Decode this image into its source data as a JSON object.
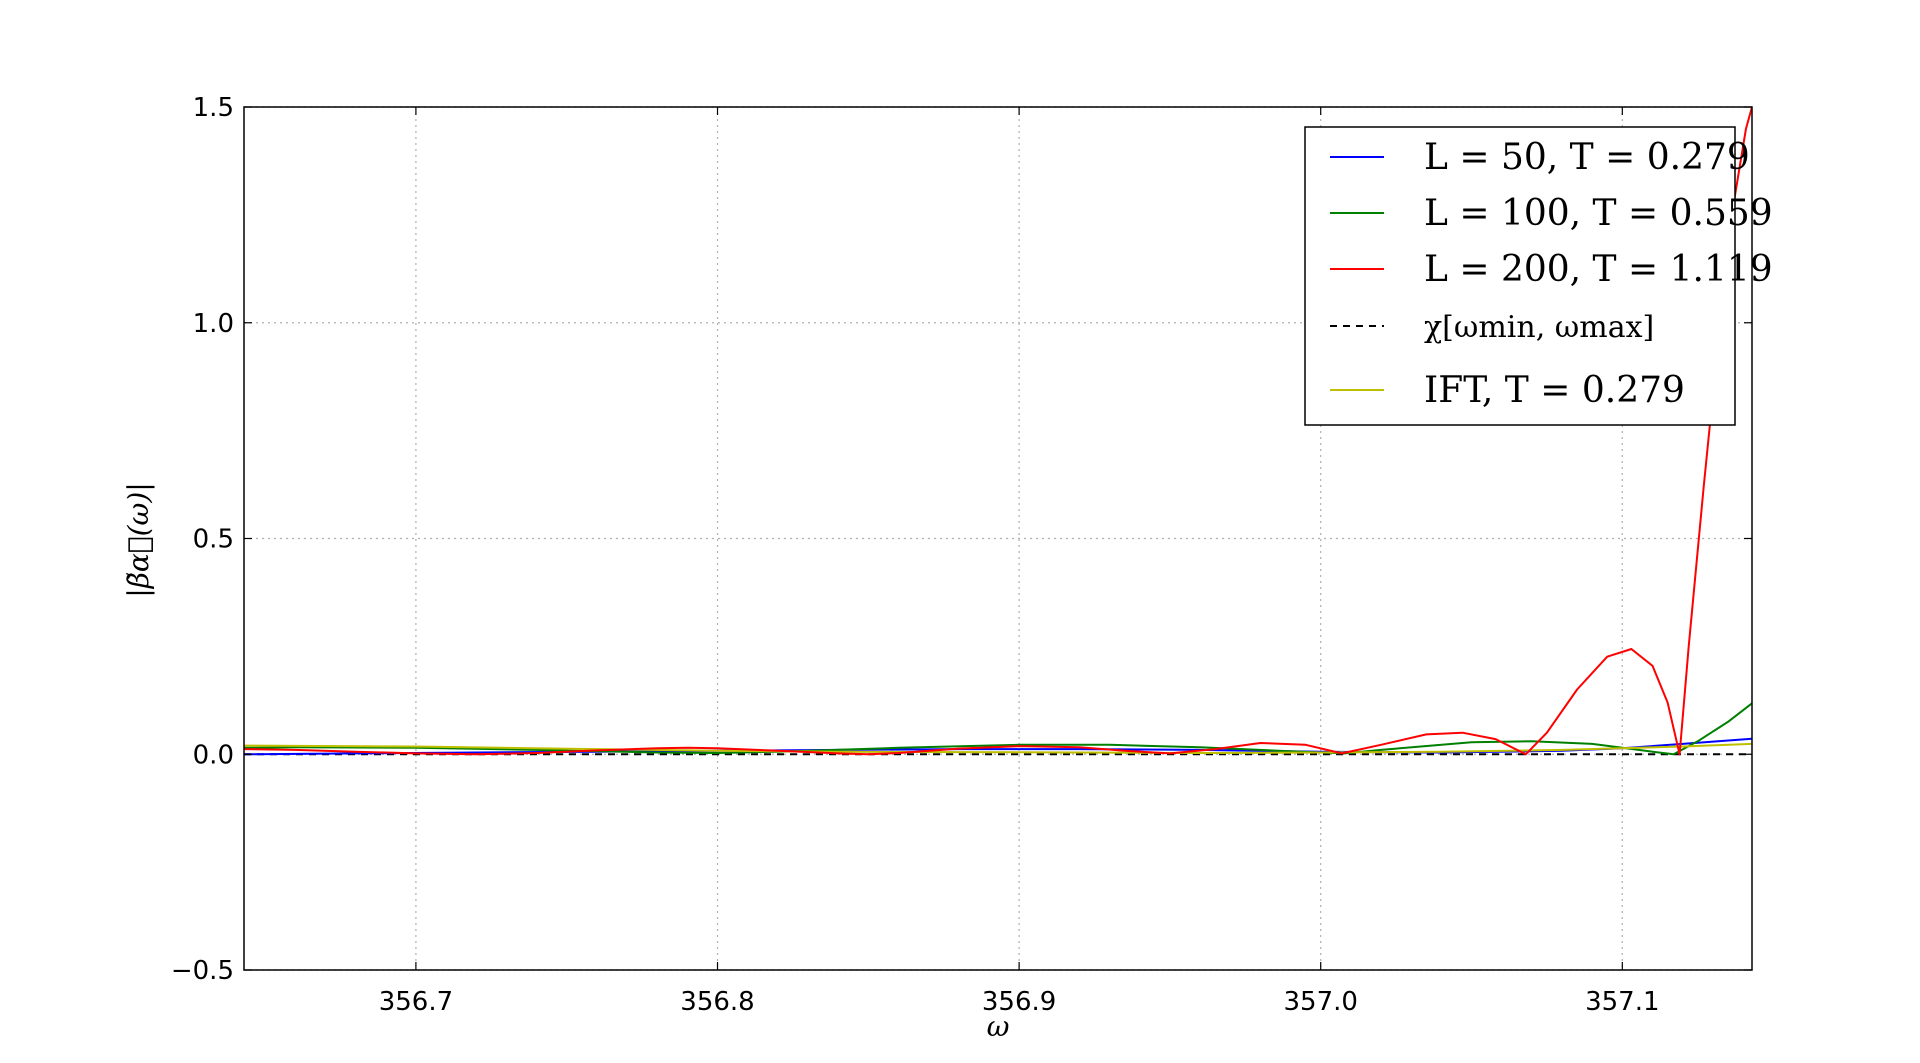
{
  "chart_data": {
    "type": "line",
    "xlabel": "ω",
    "ylabel": "|β̃α⃗(ω)|",
    "xlim": [
      356.643,
      357.143
    ],
    "ylim": [
      -0.5,
      1.5
    ],
    "xticks": [
      356.7,
      356.8,
      356.9,
      357.0,
      357.1
    ],
    "xtick_labels": [
      "356.7",
      "356.8",
      "356.9",
      "357.0",
      "357.1"
    ],
    "yticks": [
      -0.5,
      0.0,
      0.5,
      1.0,
      1.5
    ],
    "ytick_labels": [
      "−0.5",
      "0.0",
      "0.5",
      "1.0",
      "1.5"
    ],
    "grid": true,
    "legend_position": "top-right",
    "series": [
      {
        "name": "L = 50, T = 0.279",
        "color": "#0000ff",
        "style": "solid",
        "x": [
          356.643,
          356.68,
          356.72,
          356.76,
          356.8,
          356.84,
          356.88,
          356.92,
          356.96,
          357.0,
          357.04,
          357.08,
          357.1,
          357.12,
          357.143
        ],
        "y": [
          0.0,
          0.002,
          0.004,
          0.006,
          0.008,
          0.01,
          0.012,
          0.012,
          0.01,
          0.006,
          0.004,
          0.008,
          0.014,
          0.024,
          0.036
        ]
      },
      {
        "name": "L = 100, T = 0.559",
        "color": "#008000",
        "style": "solid",
        "x": [
          356.643,
          356.66,
          356.7,
          356.74,
          356.78,
          356.8,
          356.82,
          356.86,
          356.9,
          356.93,
          356.96,
          357.0,
          357.008,
          357.02,
          357.05,
          357.07,
          357.09,
          357.1,
          357.11,
          357.117,
          357.125,
          357.135,
          357.143
        ],
        "y": [
          0.015,
          0.016,
          0.015,
          0.01,
          0.004,
          0.003,
          0.006,
          0.015,
          0.022,
          0.022,
          0.016,
          0.004,
          0.002,
          0.01,
          0.028,
          0.03,
          0.024,
          0.015,
          0.006,
          0.0,
          0.03,
          0.075,
          0.118
        ]
      },
      {
        "name": "L = 200, T = 1.119",
        "color": "#ff0000",
        "style": "solid",
        "x": [
          356.643,
          356.66,
          356.68,
          356.7,
          356.72,
          356.74,
          356.76,
          356.78,
          356.79,
          356.8,
          356.82,
          356.84,
          356.85,
          356.86,
          356.88,
          356.9,
          356.92,
          356.935,
          356.95,
          356.965,
          356.98,
          356.995,
          357.007,
          357.02,
          357.035,
          357.047,
          357.058,
          357.068,
          357.075,
          357.085,
          357.095,
          357.103,
          357.11,
          357.115,
          357.119,
          357.122,
          357.127,
          357.132,
          357.137,
          357.141,
          357.143
        ],
        "y": [
          0.012,
          0.01,
          0.006,
          0.002,
          0.0,
          0.003,
          0.009,
          0.014,
          0.015,
          0.014,
          0.008,
          0.002,
          0.0,
          0.003,
          0.013,
          0.019,
          0.016,
          0.008,
          0.002,
          0.012,
          0.026,
          0.022,
          0.002,
          0.022,
          0.046,
          0.05,
          0.035,
          0.0,
          0.05,
          0.15,
          0.226,
          0.244,
          0.205,
          0.12,
          0.0,
          0.25,
          0.62,
          0.97,
          1.28,
          1.45,
          1.5
        ]
      },
      {
        "name": "χ[ωmin, ωmax]",
        "color": "#000000",
        "style": "dashed",
        "x": [
          356.643,
          357.143
        ],
        "y": [
          0.0,
          0.0
        ]
      },
      {
        "name": "IFT, T = 0.279",
        "color": "#bfbf00",
        "style": "solid",
        "x": [
          356.643,
          356.7,
          356.76,
          356.8,
          356.84,
          356.88,
          356.92,
          356.96,
          357.0,
          357.04,
          357.08,
          357.12,
          357.143
        ],
        "y": [
          0.02,
          0.018,
          0.012,
          0.008,
          0.006,
          0.005,
          0.004,
          0.003,
          0.004,
          0.006,
          0.01,
          0.018,
          0.024
        ]
      }
    ],
    "legend": [
      {
        "key": "L50",
        "text": "L = 50, T = 0.279"
      },
      {
        "key": "L100",
        "text": "L = 100, T = 0.559"
      },
      {
        "key": "L200",
        "text": "L = 200, T = 1.119"
      },
      {
        "key": "chi",
        "text": "χ[ωmin, ωmax]"
      },
      {
        "key": "ift",
        "text": "IFT, T = 0.279"
      }
    ]
  }
}
